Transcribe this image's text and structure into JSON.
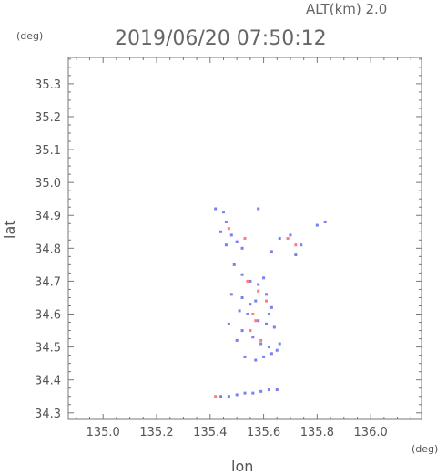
{
  "altitude_label": "ALT(km) 2.0",
  "timestamp": "2019/06/20 07:50:12",
  "unit_left": "(deg)",
  "unit_bottom": "(deg)",
  "chart_data": {
    "type": "scatter",
    "xlabel": "lon",
    "ylabel": "lat",
    "xlim": [
      134.87,
      136.19
    ],
    "ylim": [
      34.28,
      35.38
    ],
    "xticks": [
      "135.0",
      "135.2",
      "135.4",
      "135.6",
      "135.8",
      "136.0"
    ],
    "yticks": [
      "35.3",
      "35.2",
      "35.1",
      "35.0",
      "34.9",
      "34.8",
      "34.7",
      "34.6",
      "34.5",
      "34.4",
      "34.3"
    ],
    "grid": false,
    "colors": {
      "blue": "#5560e8",
      "red": "#ff5a5a",
      "axis": "#777777"
    },
    "series": [
      {
        "color": "blue",
        "points": [
          [
            135.42,
            34.92
          ],
          [
            135.45,
            34.91
          ],
          [
            135.58,
            34.92
          ],
          [
            135.46,
            34.88
          ],
          [
            135.44,
            34.85
          ],
          [
            135.48,
            34.84
          ],
          [
            135.5,
            34.82
          ],
          [
            135.46,
            34.81
          ],
          [
            135.52,
            34.8
          ],
          [
            135.63,
            34.79
          ],
          [
            135.66,
            34.83
          ],
          [
            135.7,
            34.84
          ],
          [
            135.74,
            34.81
          ],
          [
            135.72,
            34.78
          ],
          [
            135.8,
            34.87
          ],
          [
            135.83,
            34.88
          ],
          [
            135.49,
            34.75
          ],
          [
            135.52,
            34.72
          ],
          [
            135.55,
            34.7
          ],
          [
            135.48,
            34.66
          ],
          [
            135.52,
            34.65
          ],
          [
            135.57,
            34.64
          ],
          [
            135.61,
            34.66
          ],
          [
            135.63,
            34.62
          ],
          [
            135.54,
            34.6
          ],
          [
            135.58,
            34.58
          ],
          [
            135.61,
            34.57
          ],
          [
            135.64,
            34.56
          ],
          [
            135.52,
            34.55
          ],
          [
            135.56,
            34.53
          ],
          [
            135.59,
            34.51
          ],
          [
            135.62,
            34.5
          ],
          [
            135.65,
            34.49
          ],
          [
            135.53,
            34.47
          ],
          [
            135.57,
            34.46
          ],
          [
            135.6,
            34.47
          ],
          [
            135.63,
            34.48
          ],
          [
            135.66,
            34.51
          ],
          [
            135.51,
            34.61
          ],
          [
            135.55,
            34.63
          ],
          [
            135.62,
            34.6
          ],
          [
            135.47,
            34.57
          ],
          [
            135.5,
            34.52
          ],
          [
            135.58,
            34.69
          ],
          [
            135.6,
            34.71
          ],
          [
            135.44,
            34.35
          ],
          [
            135.47,
            34.35
          ],
          [
            135.5,
            34.355
          ],
          [
            135.53,
            34.36
          ],
          [
            135.56,
            34.36
          ],
          [
            135.59,
            34.365
          ],
          [
            135.62,
            34.37
          ],
          [
            135.65,
            34.37
          ]
        ]
      },
      {
        "color": "red",
        "points": [
          [
            135.47,
            34.86
          ],
          [
            135.53,
            34.83
          ],
          [
            135.69,
            34.83
          ],
          [
            135.72,
            34.81
          ],
          [
            135.54,
            34.7
          ],
          [
            135.56,
            34.6
          ],
          [
            135.57,
            34.58
          ],
          [
            135.55,
            34.55
          ],
          [
            135.59,
            34.52
          ],
          [
            135.61,
            34.64
          ],
          [
            135.58,
            34.67
          ],
          [
            135.42,
            34.35
          ]
        ]
      }
    ]
  }
}
